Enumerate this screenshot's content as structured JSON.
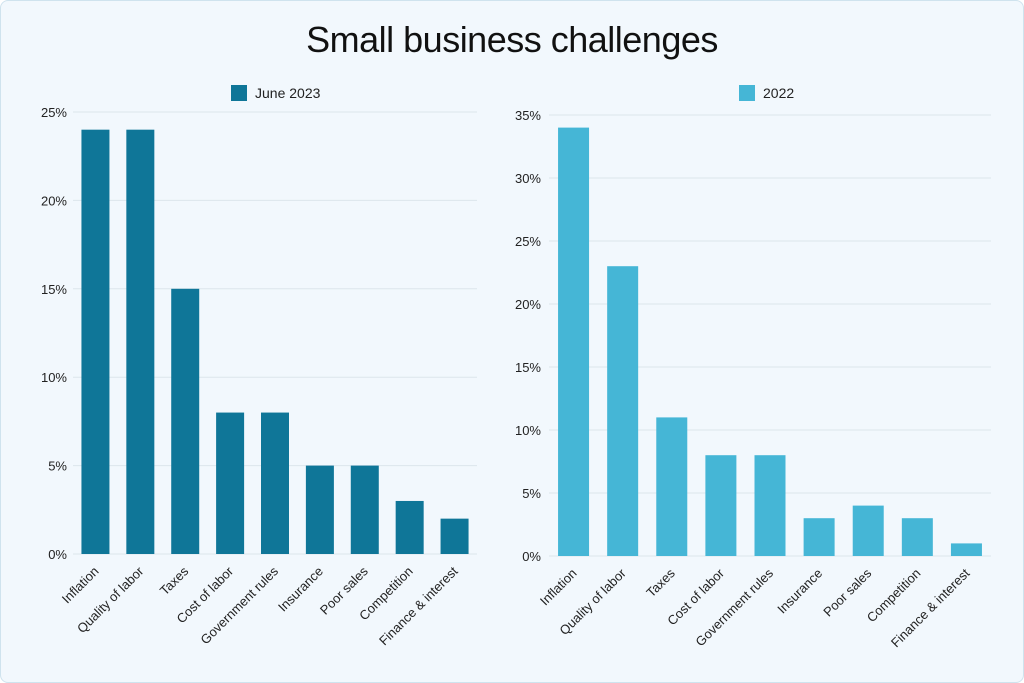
{
  "title": "Small business challenges",
  "colors": {
    "june_2023": "#0f7698",
    "y2022": "#45b6d6",
    "grid": "#dce6ec"
  },
  "chart_data": [
    {
      "type": "bar",
      "title": "",
      "series_name": "June 2023",
      "legend_position": "top",
      "categories": [
        "Inflation",
        "Quality of labor",
        "Taxes",
        "Cost of labor",
        "Government rules",
        "Insurance",
        "Poor sales",
        "Competition",
        "Finance & interest"
      ],
      "values": [
        24,
        24,
        15,
        8,
        8,
        5,
        5,
        3,
        2
      ],
      "ylim": [
        0,
        25
      ],
      "yticks": [
        "0%",
        "5%",
        "10%",
        "15%",
        "20%",
        "25%"
      ],
      "grid": true
    },
    {
      "type": "bar",
      "title": "",
      "series_name": "2022",
      "legend_position": "top",
      "categories": [
        "Inflation",
        "Quality of labor",
        "Taxes",
        "Cost of labor",
        "Government rules",
        "Insurance",
        "Poor sales",
        "Competition",
        "Finance & interest"
      ],
      "values": [
        34,
        23,
        11,
        8,
        8,
        3,
        4,
        3,
        1
      ],
      "ylim": [
        0,
        35
      ],
      "yticks": [
        "0%",
        "5%",
        "10%",
        "15%",
        "20%",
        "25%",
        "30%",
        "35%"
      ],
      "grid": true
    }
  ]
}
